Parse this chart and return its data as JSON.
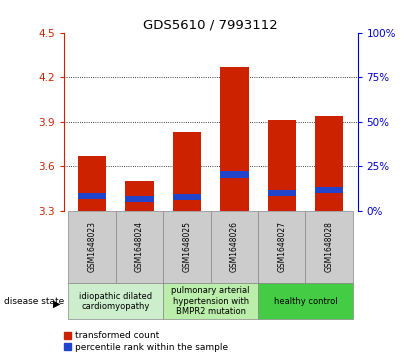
{
  "title": "GDS5610 / 7993112",
  "samples": [
    "GSM1648023",
    "GSM1648024",
    "GSM1648025",
    "GSM1648026",
    "GSM1648027",
    "GSM1648028"
  ],
  "transformed_counts": [
    3.67,
    3.5,
    3.83,
    4.27,
    3.91,
    3.94
  ],
  "percentile_bottom": [
    3.38,
    3.36,
    3.37,
    3.52,
    3.4,
    3.42
  ],
  "percentile_top": [
    3.42,
    3.4,
    3.41,
    3.57,
    3.44,
    3.46
  ],
  "ylim": [
    3.3,
    4.5
  ],
  "yticks_left": [
    3.3,
    3.6,
    3.9,
    4.2,
    4.5
  ],
  "yticks_right": [
    0,
    25,
    50,
    75,
    100
  ],
  "bar_bottom": 3.3,
  "bar_color": "#cc2200",
  "pct_color": "#2244cc",
  "grid_color": "#000000",
  "disease_groups": [
    {
      "label": "idiopathic dilated\ncardiomyopathy",
      "indices": [
        0,
        1
      ],
      "color": "#cceecc"
    },
    {
      "label": "pulmonary arterial\nhypertension with\nBMPR2 mutation",
      "indices": [
        2,
        3
      ],
      "color": "#bbeeaa"
    },
    {
      "label": "healthy control",
      "indices": [
        4,
        5
      ],
      "color": "#44cc44"
    }
  ],
  "legend_red_label": "transformed count",
  "legend_blue_label": "percentile rank within the sample",
  "disease_state_label": "disease state",
  "bar_width": 0.6,
  "left_axis_color": "#cc2200",
  "right_axis_color": "#0000cc",
  "sample_box_color": "#cccccc",
  "sample_box_edge": "#888888"
}
